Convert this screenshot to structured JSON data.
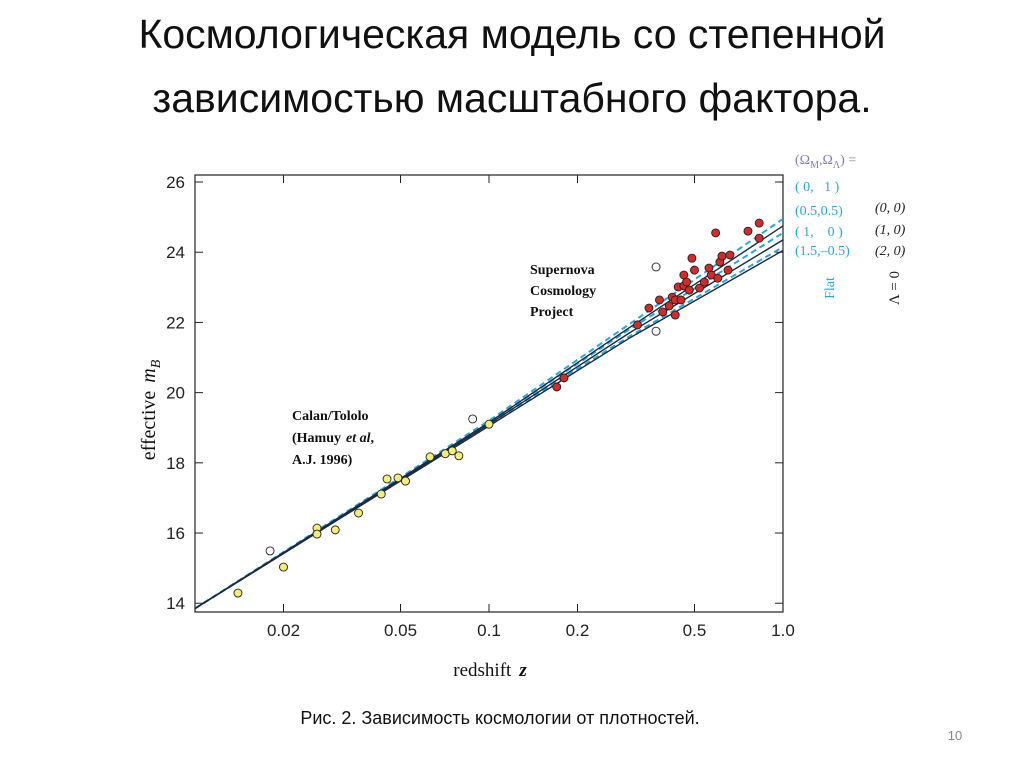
{
  "title": [
    "Космологическая модель со степенной",
    "зависимостью масштабного фактора."
  ],
  "caption": "Рис. 2. Зависимость космологии от плотностей.",
  "page_number": "10",
  "chart_data": {
    "type": "scatter",
    "xlabel": {
      "text": "redshift",
      "symbol": "z"
    },
    "ylabel": {
      "text": "effective",
      "symbol": "m",
      "subscript": "B"
    },
    "xscale": "log",
    "xlim": [
      0.01,
      1
    ],
    "xticks": [
      0.02,
      0.05,
      0.1,
      0.2,
      0.5,
      {
        "value": 1,
        "label": "1.0"
      }
    ],
    "ylim": [
      13.75,
      26.2
    ],
    "yticks": [
      14,
      16,
      18,
      20,
      22,
      24,
      26
    ],
    "legend_title": [
      "(Ω",
      "M",
      ",Ω",
      "Λ",
      ") ="
    ],
    "annotations": {
      "supernova": [
        "Supernova",
        "Cosmology",
        "Project"
      ],
      "calan": [
        [
          "Calan/Tololo"
        ],
        [
          "(Hamuy",
          "et al",
          ","
        ],
        [
          "A.J. 1996)"
        ]
      ],
      "flat_extra": "( 1,    0 )",
      "flat": "Flat",
      "lambda_zero": "Λ = 0"
    },
    "series": [
      {
        "name": "( 0,   1 )",
        "type": "line",
        "dashed": true,
        "color": "#2aa6dc",
        "x": [
          0.01,
          0.1,
          0.3,
          1
        ],
        "values": [
          13.85,
          19.2,
          21.95,
          24.95
        ]
      },
      {
        "name": "(0.5,0.5)",
        "type": "line",
        "dashed": true,
        "color": "#2aa6dc",
        "x": [
          0.01,
          0.1,
          0.3,
          1
        ],
        "values": [
          13.85,
          19.15,
          21.8,
          24.55
        ]
      },
      {
        "name": "(1.5,–0.5)",
        "type": "line",
        "dashed": true,
        "color": "#2aa6dc",
        "x": [
          0.01,
          0.1,
          0.3,
          1
        ],
        "values": [
          13.85,
          19.1,
          21.6,
          24.15
        ]
      },
      {
        "name": "(0, 0)",
        "type": "line",
        "dashed": false,
        "color": "#1b2a40",
        "x": [
          0.01,
          0.1,
          0.3,
          1
        ],
        "values": [
          13.85,
          19.15,
          21.85,
          24.75
        ]
      },
      {
        "name": "(1, 0)",
        "type": "line",
        "dashed": false,
        "color": "#1b2a40",
        "x": [
          0.01,
          0.1,
          0.3,
          1
        ],
        "values": [
          13.85,
          19.1,
          21.7,
          24.35
        ]
      },
      {
        "name": "(2, 0)",
        "type": "line",
        "dashed": false,
        "color": "#1b2a40",
        "x": [
          0.01,
          0.1,
          0.3,
          1
        ],
        "values": [
          13.85,
          19.05,
          21.55,
          24.05
        ]
      },
      {
        "type": "scatter",
        "color": "#f3ee78",
        "x": [
          0.014,
          0.02,
          0.026,
          0.026,
          0.03,
          0.036,
          0.043,
          0.045,
          0.049,
          0.052,
          0.063,
          0.071,
          0.075,
          0.079,
          0.1
        ],
        "values": [
          14.29,
          15.03,
          16.14,
          15.97,
          16.09,
          16.57,
          17.11,
          17.54,
          17.57,
          17.48,
          18.17,
          18.26,
          18.34,
          18.2,
          19.1
        ]
      },
      {
        "type": "scatter",
        "color": "#ffffff",
        "x": [
          0.018,
          0.088,
          0.37,
          0.37
        ],
        "values": [
          15.49,
          19.25,
          23.58,
          21.75
        ]
      },
      {
        "type": "scatter",
        "color": "#d42a2a",
        "x": [
          0.17,
          0.18,
          0.32,
          0.35,
          0.38,
          0.39,
          0.41,
          0.42,
          0.43,
          0.43,
          0.44,
          0.45,
          0.46,
          0.46,
          0.47,
          0.48,
          0.49,
          0.5,
          0.52,
          0.54,
          0.56,
          0.57,
          0.59,
          0.6,
          0.61,
          0.62,
          0.65,
          0.66,
          0.76,
          0.83,
          0.83
        ],
        "values": [
          20.16,
          20.42,
          21.93,
          22.41,
          22.64,
          22.3,
          22.47,
          22.72,
          22.21,
          22.64,
          23.01,
          22.64,
          23.35,
          23.04,
          23.15,
          22.92,
          23.83,
          23.49,
          22.98,
          23.15,
          23.55,
          23.35,
          24.55,
          23.26,
          23.72,
          23.89,
          23.49,
          23.92,
          24.6,
          24.83,
          24.4
        ]
      }
    ]
  }
}
